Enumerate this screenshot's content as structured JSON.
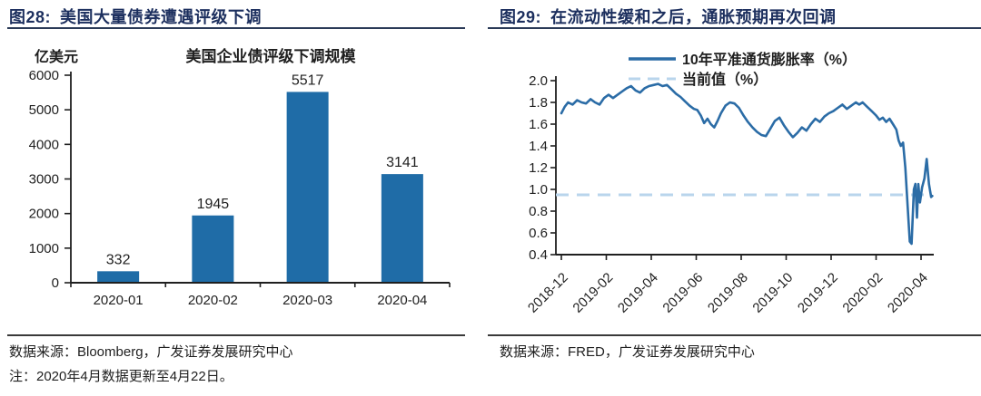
{
  "figures": [
    {
      "label": "图28:",
      "title": "美国大量债券遭遇评级下调",
      "source_note": "数据来源：Bloomberg，广发证券发展研究中心",
      "footnote": "注：2020年4月数据更新至4月22日。"
    },
    {
      "label": "图29:",
      "title": "在流动性缓和之后，通胀预期再次回调",
      "source_note": "数据来源：FRED，广发证券发展研究中心",
      "footnote": ""
    }
  ],
  "colors": {
    "title_navy": "#1c2f5e",
    "bar_blue": "#1f6ca7",
    "line_blue": "#2b6ca6",
    "dashed_light_blue": "#b9d5ec",
    "axis_black": "#1f1f1f"
  },
  "chart_data": [
    {
      "type": "bar",
      "title": "美国企业债评级下调规模",
      "unit_label": "亿美元",
      "categories": [
        "2020-01",
        "2020-02",
        "2020-03",
        "2020-04"
      ],
      "values": [
        332,
        1945,
        5517,
        3141
      ],
      "xlabel": "",
      "ylabel": "亿美元",
      "ylim": [
        0,
        6000
      ],
      "ytick_step": 1000,
      "grid": false,
      "bar_color": "#1f6ca7"
    },
    {
      "type": "line",
      "title": "",
      "xlabel": "",
      "ylabel": "",
      "ylim": [
        0.4,
        2.0
      ],
      "ytick_step": 0.2,
      "grid": false,
      "legend_position": "top",
      "xtick_labels": [
        "2018-12",
        "2019-02",
        "2019-04",
        "2019-06",
        "2019-08",
        "2019-10",
        "2019-12",
        "2020-02",
        "2020-04"
      ],
      "x_months_range": [
        0,
        16
      ],
      "series": [
        {
          "name": "10年平准通货膨胀率（%）",
          "style": "solid",
          "color": "#2b6ca6",
          "points": [
            [
              0.0,
              1.7
            ],
            [
              0.15,
              1.76
            ],
            [
              0.3,
              1.8
            ],
            [
              0.5,
              1.78
            ],
            [
              0.7,
              1.82
            ],
            [
              0.9,
              1.8
            ],
            [
              1.1,
              1.79
            ],
            [
              1.3,
              1.83
            ],
            [
              1.5,
              1.8
            ],
            [
              1.7,
              1.78
            ],
            [
              1.9,
              1.84
            ],
            [
              2.1,
              1.87
            ],
            [
              2.3,
              1.84
            ],
            [
              2.5,
              1.87
            ],
            [
              2.7,
              1.9
            ],
            [
              2.9,
              1.93
            ],
            [
              3.1,
              1.95
            ],
            [
              3.3,
              1.91
            ],
            [
              3.5,
              1.89
            ],
            [
              3.7,
              1.93
            ],
            [
              3.9,
              1.95
            ],
            [
              4.1,
              1.96
            ],
            [
              4.3,
              1.97
            ],
            [
              4.5,
              1.95
            ],
            [
              4.7,
              1.96
            ],
            [
              4.9,
              1.92
            ],
            [
              5.1,
              1.88
            ],
            [
              5.3,
              1.85
            ],
            [
              5.5,
              1.81
            ],
            [
              5.7,
              1.77
            ],
            [
              5.9,
              1.74
            ],
            [
              6.05,
              1.73
            ],
            [
              6.2,
              1.68
            ],
            [
              6.35,
              1.61
            ],
            [
              6.5,
              1.65
            ],
            [
              6.65,
              1.6
            ],
            [
              6.8,
              1.57
            ],
            [
              6.95,
              1.63
            ],
            [
              7.1,
              1.7
            ],
            [
              7.3,
              1.77
            ],
            [
              7.5,
              1.8
            ],
            [
              7.7,
              1.79
            ],
            [
              7.9,
              1.75
            ],
            [
              8.1,
              1.68
            ],
            [
              8.3,
              1.62
            ],
            [
              8.5,
              1.57
            ],
            [
              8.7,
              1.53
            ],
            [
              8.9,
              1.5
            ],
            [
              9.1,
              1.49
            ],
            [
              9.3,
              1.56
            ],
            [
              9.5,
              1.63
            ],
            [
              9.7,
              1.66
            ],
            [
              9.9,
              1.59
            ],
            [
              10.1,
              1.53
            ],
            [
              10.3,
              1.48
            ],
            [
              10.5,
              1.52
            ],
            [
              10.7,
              1.57
            ],
            [
              10.9,
              1.54
            ],
            [
              11.1,
              1.6
            ],
            [
              11.3,
              1.65
            ],
            [
              11.5,
              1.62
            ],
            [
              11.7,
              1.67
            ],
            [
              11.9,
              1.7
            ],
            [
              12.1,
              1.72
            ],
            [
              12.3,
              1.75
            ],
            [
              12.5,
              1.78
            ],
            [
              12.7,
              1.74
            ],
            [
              12.9,
              1.77
            ],
            [
              13.1,
              1.8
            ],
            [
              13.25,
              1.78
            ],
            [
              13.4,
              1.8
            ],
            [
              13.6,
              1.76
            ],
            [
              13.8,
              1.72
            ],
            [
              14.0,
              1.68
            ],
            [
              14.15,
              1.64
            ],
            [
              14.3,
              1.66
            ],
            [
              14.45,
              1.62
            ],
            [
              14.6,
              1.65
            ],
            [
              14.75,
              1.6
            ],
            [
              14.9,
              1.55
            ],
            [
              15.0,
              1.45
            ],
            [
              15.1,
              1.4
            ],
            [
              15.2,
              1.43
            ],
            [
              15.3,
              1.2
            ],
            [
              15.4,
              0.85
            ],
            [
              15.5,
              0.52
            ],
            [
              15.58,
              0.5
            ],
            [
              15.68,
              1.0
            ],
            [
              15.75,
              1.05
            ],
            [
              15.82,
              0.74
            ],
            [
              15.88,
              1.05
            ],
            [
              15.95,
              0.88
            ],
            [
              16.05,
              1.02
            ],
            [
              16.15,
              1.1
            ],
            [
              16.25,
              1.28
            ],
            [
              16.35,
              1.05
            ],
            [
              16.45,
              0.93
            ],
            [
              16.5,
              0.94
            ]
          ]
        },
        {
          "name": "当前值（%）",
          "style": "dashed",
          "color": "#b9d5ec",
          "value": 0.95
        }
      ]
    }
  ]
}
